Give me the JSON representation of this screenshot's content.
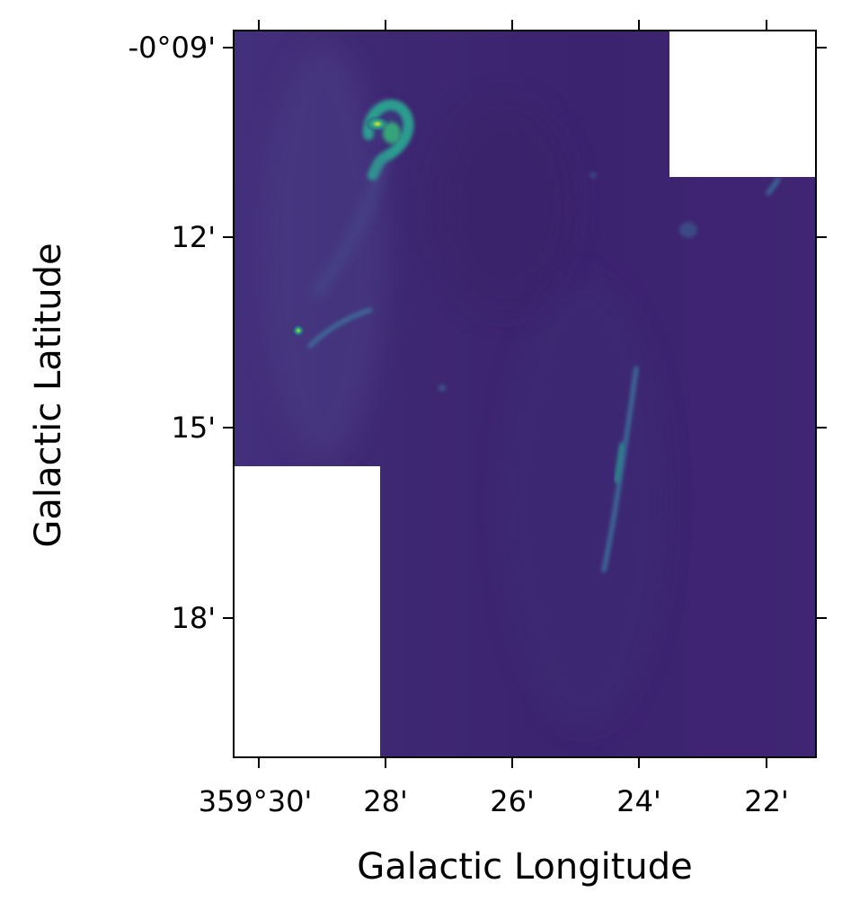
{
  "figure": {
    "xlabel": "Galactic Longitude",
    "ylabel": "Galactic Latitude",
    "x_ticks": [
      "359°30'",
      "28'",
      "26'",
      "24'",
      "22'"
    ],
    "y_ticks": [
      "-0°09'",
      "12'",
      "15'",
      "18'"
    ],
    "colormap": "viridis",
    "colors": {
      "background_low": "#3f1f72",
      "emission_mid": "#2f5f8c",
      "emission_high": "#2ab07f",
      "peak": "#fde725",
      "blank_regions": "#ffffff",
      "frame": "#000000"
    },
    "image_description_blanks": "white masked corners at top-right and bottom-left"
  }
}
